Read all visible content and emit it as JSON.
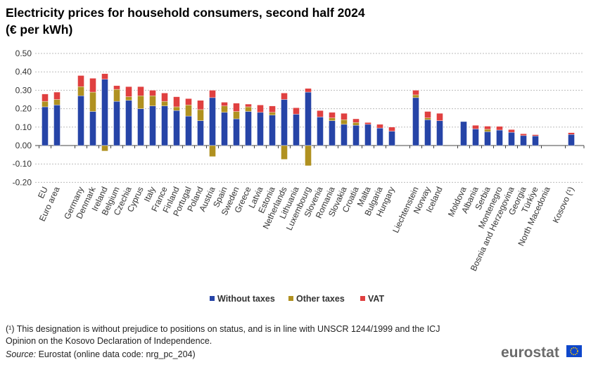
{
  "chart_data": {
    "type": "bar",
    "stacked": true,
    "title": "Electricity prices for household consumers, second half 2024",
    "subtitle": "(€ per kWh)",
    "ylim": [
      -0.2,
      0.5
    ],
    "yticks": [
      "0.50",
      "0.40",
      "0.30",
      "0.20",
      "0.10",
      "0.00",
      "-0.10",
      "-0.20"
    ],
    "grid": true,
    "legend_position": "bottom",
    "groups": [
      [
        "EU",
        "Euro area"
      ],
      [
        "Germany",
        "Denmark",
        "Ireland",
        "Belgium",
        "Czechia",
        "Cyprus",
        "Italy",
        "France",
        "Finland",
        "Portugal",
        "Poland",
        "Austria",
        "Spain",
        "Sweden",
        "Greece",
        "Latvia",
        "Estonia",
        "Netherlands",
        "Lithuania",
        "Luxembourg",
        "Slovenia",
        "Romania",
        "Slovakia",
        "Croatia",
        "Malta",
        "Bulgaria",
        "Hungary"
      ],
      [
        "Liechtenstein",
        "Norway",
        "Iceland"
      ],
      [
        "Moldova",
        "Albania",
        "Serbia",
        "Montenegro",
        "Bosnia and Herzegovina",
        "Georgia",
        "Türkiye",
        "North Macedonia"
      ],
      [
        "Kosovo (¹)"
      ]
    ],
    "series": [
      {
        "name": "Without taxes",
        "color": "#2644A7",
        "values": [
          0.21,
          0.22,
          0.27,
          0.185,
          0.36,
          0.24,
          0.245,
          0.2,
          0.215,
          0.215,
          0.19,
          0.16,
          0.135,
          0.26,
          0.18,
          0.145,
          0.185,
          0.18,
          0.165,
          0.25,
          0.17,
          0.29,
          0.155,
          0.135,
          0.115,
          0.11,
          0.115,
          0.095,
          0.078,
          0.26,
          0.14,
          0.135,
          0.13,
          0.09,
          0.075,
          0.084,
          0.072,
          0.054,
          0.052,
          null,
          0.06
        ]
      },
      {
        "name": "Other taxes",
        "color": "#B09120",
        "values": [
          0.03,
          0.03,
          0.05,
          0.105,
          -0.03,
          0.065,
          0.02,
          0.07,
          0.055,
          0.025,
          0.02,
          0.06,
          0.06,
          -0.06,
          0.035,
          0.04,
          0.025,
          0,
          0.015,
          -0.075,
          0,
          -0.11,
          0,
          0.015,
          0.025,
          0.015,
          0,
          0,
          0,
          0.015,
          0.01,
          0,
          0,
          0,
          0.013,
          0,
          0,
          0,
          0,
          null,
          0
        ]
      },
      {
        "name": "VAT",
        "color": "#E04040",
        "values": [
          0.04,
          0.04,
          0.06,
          0.075,
          0.03,
          0.02,
          0.055,
          0.05,
          0.03,
          0.045,
          0.055,
          0.035,
          0.05,
          0.04,
          0.02,
          0.045,
          0.015,
          0.04,
          0.035,
          0.035,
          0.035,
          0.02,
          0.035,
          0.03,
          0.035,
          0.02,
          0.01,
          0.02,
          0.022,
          0.025,
          0.035,
          0.04,
          0,
          0.02,
          0.017,
          0.02,
          0.015,
          0.01,
          0.007,
          null,
          0.01
        ]
      }
    ]
  },
  "footnotes": {
    "note_line1": "(¹) This designation is without prejudice to positions on status, and is in line with UNSCR 1244/1999 and the ICJ",
    "note_line2": "Opinion on the Kosovo Declaration of Independence.",
    "source_label": "Source:",
    "source_text": " Eurostat (online data code: nrg_pc_204)"
  },
  "logo": {
    "text": "eurostat"
  }
}
